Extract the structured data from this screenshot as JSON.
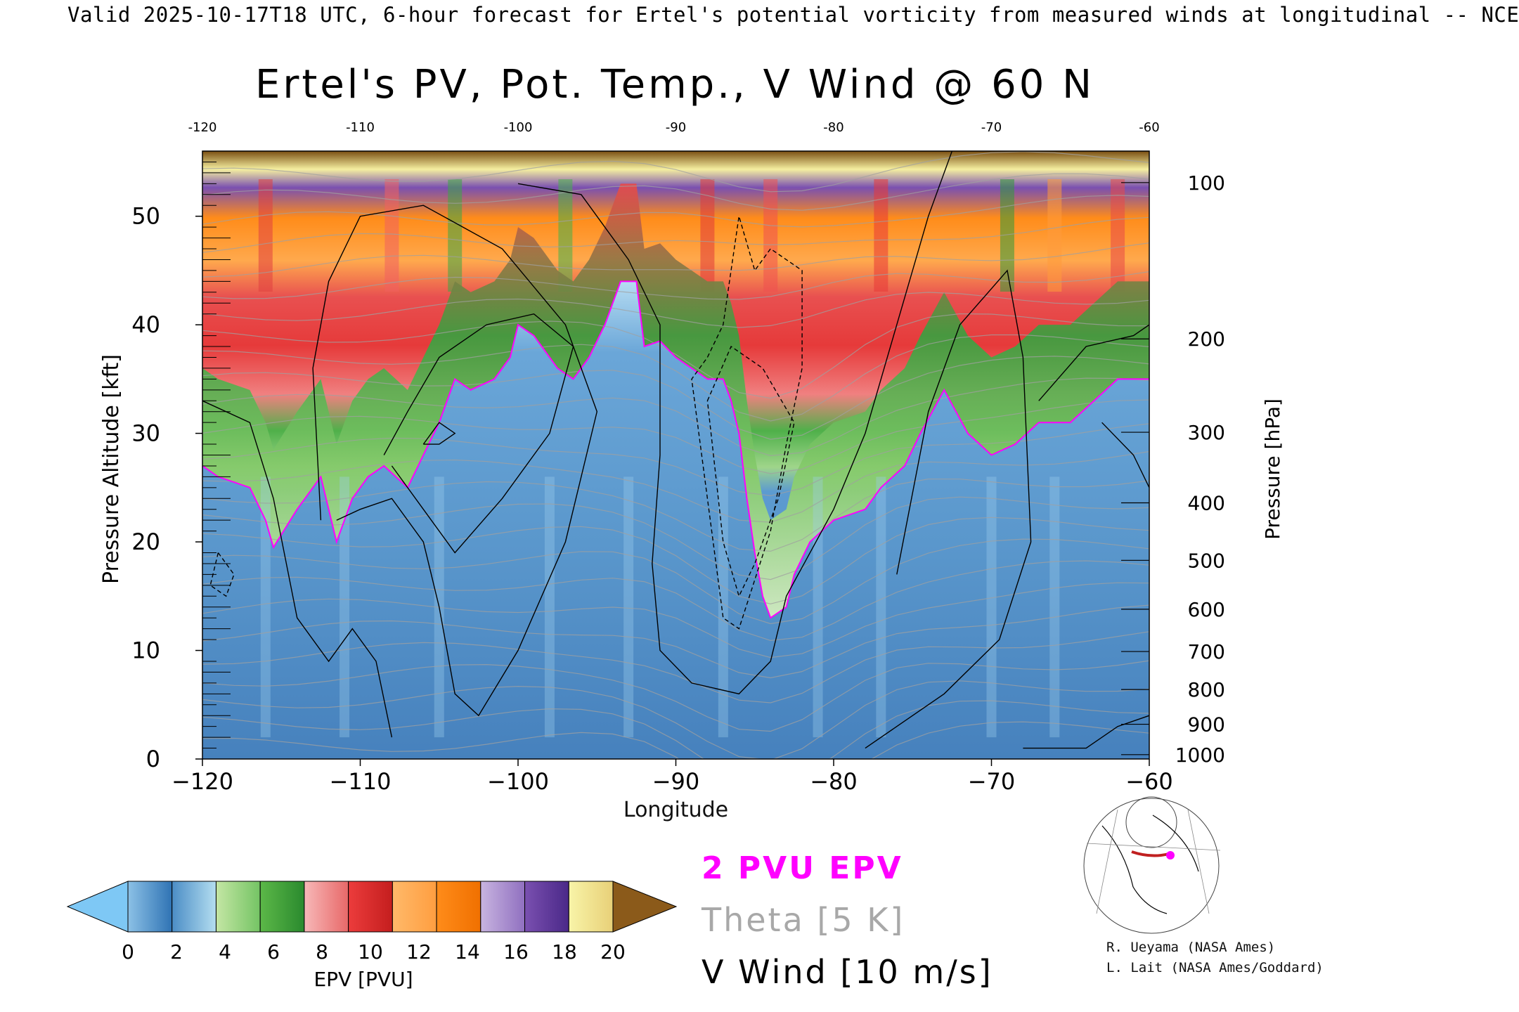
{
  "header": {
    "valid_text": "Valid 2025-10-17T18 UTC, 6-hour forecast for Ertel's potential vorticity from measured winds at longitudinal -- NCE"
  },
  "chart_data": {
    "type": "heatmap",
    "title": "Ertel's PV, Pot. Temp., V Wind @ 60 N",
    "xlabel": "Longitude",
    "ylabel_left": "Pressure Altitude [kft]",
    "ylabel_right": "Pressure [hPa]",
    "xlim": [
      -120,
      -60
    ],
    "ylim": [
      0,
      56
    ],
    "x_ticks": [
      -120,
      -110,
      -100,
      -90,
      -80,
      -70,
      -60
    ],
    "x_tick_labels": [
      "−120",
      "−110",
      "−100",
      "−90",
      "−80",
      "−70",
      "−60"
    ],
    "top_ticks": [
      -120,
      -110,
      -100,
      -90,
      -80,
      -70,
      -60
    ],
    "y_ticks": [
      0,
      10,
      20,
      30,
      40,
      50
    ],
    "pressure_ticks": [
      {
        "label": "100",
        "kft": 53.1
      },
      {
        "label": "200",
        "kft": 38.7
      },
      {
        "label": "300",
        "kft": 30.1
      },
      {
        "label": "400",
        "kft": 23.6
      },
      {
        "label": "500",
        "kft": 18.3
      },
      {
        "label": "600",
        "kft": 13.8
      },
      {
        "label": "700",
        "kft": 9.9
      },
      {
        "label": "800",
        "kft": 6.4
      },
      {
        "label": "900",
        "kft": 3.2
      },
      {
        "label": "1000",
        "kft": 0.4
      }
    ],
    "tropopause_2pvu_kft": [
      [
        -120,
        27
      ],
      [
        -119,
        26
      ],
      [
        -117,
        25
      ],
      [
        -116,
        22
      ],
      [
        -115.5,
        19.5
      ],
      [
        -114,
        23
      ],
      [
        -112.5,
        26
      ],
      [
        -111.5,
        20
      ],
      [
        -110.5,
        24
      ],
      [
        -109.5,
        26
      ],
      [
        -108.5,
        27
      ],
      [
        -107,
        25
      ],
      [
        -106,
        28
      ],
      [
        -105,
        31
      ],
      [
        -104,
        35
      ],
      [
        -103,
        34
      ],
      [
        -101.5,
        35
      ],
      [
        -100.5,
        37
      ],
      [
        -100,
        40
      ],
      [
        -99,
        39
      ],
      [
        -97.5,
        36
      ],
      [
        -96.5,
        35
      ],
      [
        -95.5,
        37
      ],
      [
        -94.5,
        40
      ],
      [
        -93.5,
        44
      ],
      [
        -92.5,
        44
      ],
      [
        -92,
        38
      ],
      [
        -91,
        38.5
      ],
      [
        -90,
        37
      ],
      [
        -89,
        36
      ],
      [
        -88,
        35
      ],
      [
        -87,
        35
      ],
      [
        -86.5,
        33
      ],
      [
        -86,
        30
      ],
      [
        -85.5,
        24
      ],
      [
        -85,
        19
      ],
      [
        -84.5,
        15
      ],
      [
        -84,
        13
      ],
      [
        -83,
        14
      ],
      [
        -82.5,
        17
      ],
      [
        -81.5,
        20
      ],
      [
        -80,
        22
      ],
      [
        -78,
        23
      ],
      [
        -77,
        25
      ],
      [
        -75.5,
        27
      ],
      [
        -74.5,
        30
      ],
      [
        -73,
        34
      ],
      [
        -71.5,
        30
      ],
      [
        -70,
        28
      ],
      [
        -68.5,
        29
      ],
      [
        -67,
        31
      ],
      [
        -65,
        31
      ],
      [
        -63.5,
        33
      ],
      [
        -62,
        35
      ],
      [
        -60.5,
        35
      ],
      [
        -60,
        35
      ]
    ],
    "theta_levels_k": [
      300,
      310,
      320,
      330,
      340,
      350,
      360,
      370,
      380,
      390,
      400,
      410,
      420
    ],
    "wind_contour_labels": [
      "-10",
      "0",
      "10"
    ],
    "colorbar": {
      "label": "EPV [PVU]",
      "ticks": [
        "0",
        "2",
        "4",
        "6",
        "8",
        "10",
        "12",
        "14",
        "16",
        "18",
        "20"
      ],
      "under_color": "#7ec8f5",
      "over_color": "#8b5a1a",
      "segments": [
        [
          "#8cc1e6",
          "#2f73b4"
        ],
        [
          "#4b8dc6",
          "#b4def0"
        ],
        [
          "#c4e6a4",
          "#74c464"
        ],
        [
          "#5cb848",
          "#2a8a2e"
        ],
        [
          "#f7b8b8",
          "#e86868"
        ],
        [
          "#ec3c3c",
          "#c41e1e"
        ],
        [
          "#ffb96a",
          "#ff9e40"
        ],
        [
          "#ff8c1a",
          "#f07000"
        ],
        [
          "#c8b4e0",
          "#9070c0"
        ],
        [
          "#7a50b0",
          "#4a2888"
        ],
        [
          "#f8f4a8",
          "#e8d078"
        ]
      ]
    }
  },
  "legend": {
    "epv_line": "2 PVU EPV",
    "theta_line": "Theta [5 K]",
    "wind_line": "V Wind [10 m/s]",
    "epv_color": "#ff00ff",
    "theta_color": "#a0a0a0",
    "wind_color": "#000000"
  },
  "credits": {
    "line1": "R. Ueyama (NASA Ames)",
    "line2": "L. Lait (NASA Ames/Goddard)"
  }
}
